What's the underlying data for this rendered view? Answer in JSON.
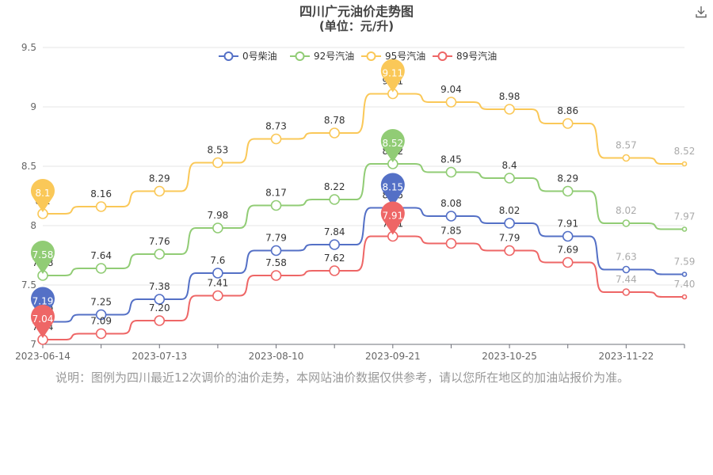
{
  "chart_data": {
    "type": "line",
    "title": "四川广元油价走势图",
    "subtitle": "(单位：元/升)",
    "ylim": [
      7,
      9.5
    ],
    "y_ticks": [
      "7",
      "7.5",
      "8",
      "8.5",
      "9",
      "9.5"
    ],
    "x_tick_labels": [
      "2023-06-14",
      "2023-07-13",
      "2023-08-10",
      "2023-09-21",
      "2023-10-25",
      "2023-11-22"
    ],
    "legend_position": "top-center",
    "grid": true,
    "series": [
      {
        "name": "0号柴油",
        "color": "#5470c6",
        "values": [
          7.19,
          7.25,
          7.38,
          7.6,
          7.79,
          7.84,
          8.15,
          8.08,
          8.02,
          7.91,
          7.63,
          7.59
        ],
        "labels": [
          "7.19",
          "7.25",
          "7.38",
          "7.6",
          "7.79",
          "7.84",
          "8.15",
          "8.08",
          "8.02",
          "7.91",
          "7.63",
          "7.59"
        ]
      },
      {
        "name": "92号汽油",
        "color": "#91cc75",
        "values": [
          7.58,
          7.64,
          7.76,
          7.98,
          8.17,
          8.22,
          8.52,
          8.45,
          8.4,
          8.29,
          8.02,
          7.97
        ],
        "labels": [
          "7.58",
          "7.64",
          "7.76",
          "7.98",
          "8.17",
          "8.22",
          "8.52",
          "8.45",
          "8.4",
          "8.29",
          "8.02",
          "7.97"
        ]
      },
      {
        "name": "95号汽油",
        "color": "#fac858",
        "values": [
          8.1,
          8.16,
          8.29,
          8.53,
          8.73,
          8.78,
          9.11,
          9.04,
          8.98,
          8.86,
          8.57,
          8.52
        ],
        "labels": [
          "8.1",
          "8.16",
          "8.29",
          "8.53",
          "8.73",
          "8.78",
          "9.11",
          "9.04",
          "8.98",
          "8.86",
          "8.57",
          "8.52"
        ]
      },
      {
        "name": "89号汽油",
        "color": "#ee6666",
        "values": [
          7.04,
          7.09,
          7.2,
          7.41,
          7.58,
          7.62,
          7.91,
          7.85,
          7.79,
          7.69,
          7.44,
          7.4
        ],
        "labels": [
          "7.04",
          "7.09",
          "7.20",
          "7.41",
          "7.58",
          "7.62",
          "7.91",
          "7.85",
          "7.79",
          "7.69",
          "7.44",
          "7.40"
        ]
      }
    ],
    "markers": {
      "min_index": 0,
      "max_index": 6
    }
  },
  "note": "说明：图例为四川最近12次调价的油价走势，本网站油价数据仅供参考，请以您所在地区的加油站报价为准。",
  "icons": {
    "download": "download-icon"
  }
}
